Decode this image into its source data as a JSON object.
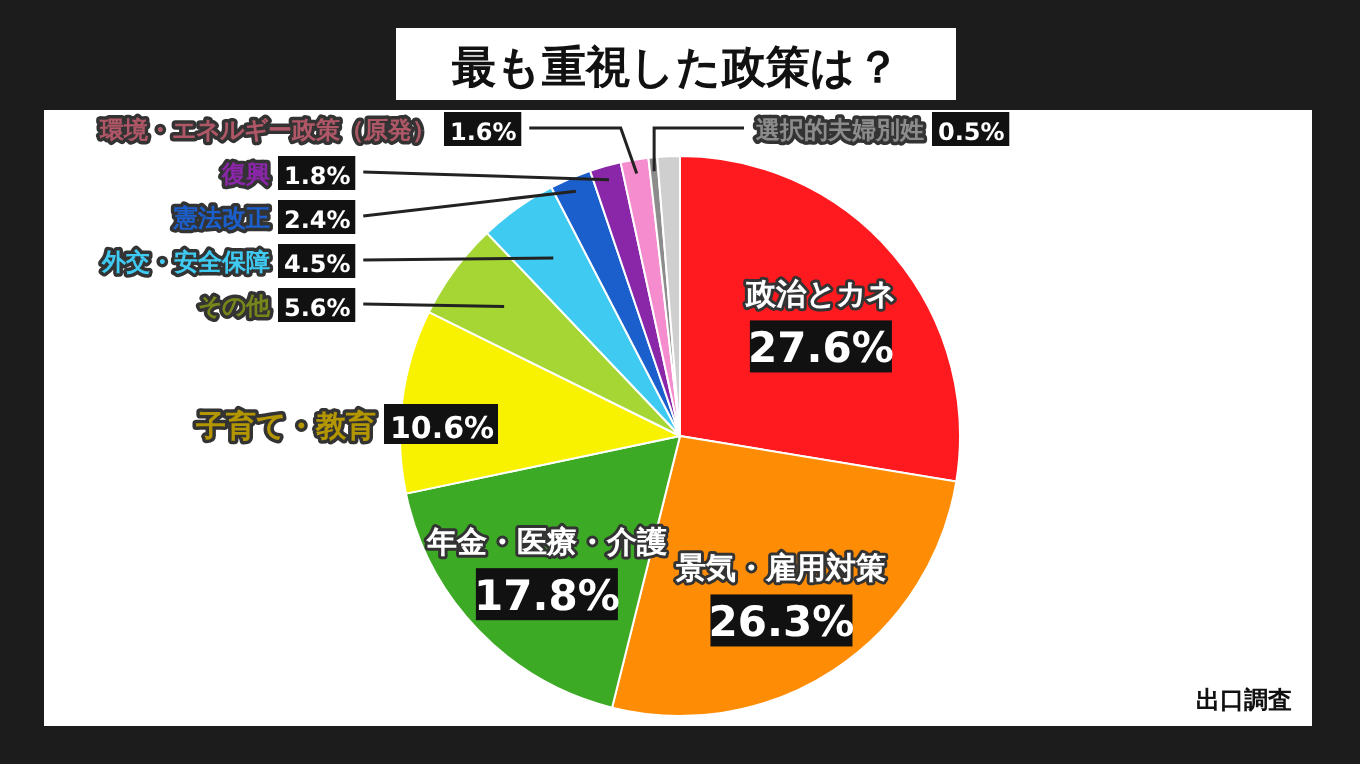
{
  "chart_data": {
    "type": "pie",
    "title": "最も重視した政策は？",
    "categories": [
      "政治とカネ",
      "景気・雇用対策",
      "年金・医療・介護",
      "子育て・教育",
      "その他",
      "外交・安全保障",
      "憲法改正",
      "復興",
      "環境・エネルギー政策（原発）",
      "選択的夫婦別姓",
      null
    ],
    "values": [
      27.6,
      26.3,
      17.8,
      10.6,
      5.6,
      4.5,
      2.4,
      1.8,
      1.6,
      0.5,
      1.3
    ],
    "colors": [
      "#fe1a1e",
      "#fe8c05",
      "#3daa25",
      "#f8f200",
      "#a6d634",
      "#3fcaf2",
      "#1b5fcc",
      "#8a26a8",
      "#f58ccd",
      "#8c8c8c",
      "#cfcfcf"
    ],
    "value_labels": [
      "27.6%",
      "26.3%",
      "17.8%",
      "10.6%",
      "5.6%",
      "4.5%",
      "2.4%",
      "1.8%",
      "1.6%",
      "0.5%",
      null
    ],
    "annotations": [
      "出口調査"
    ]
  }
}
